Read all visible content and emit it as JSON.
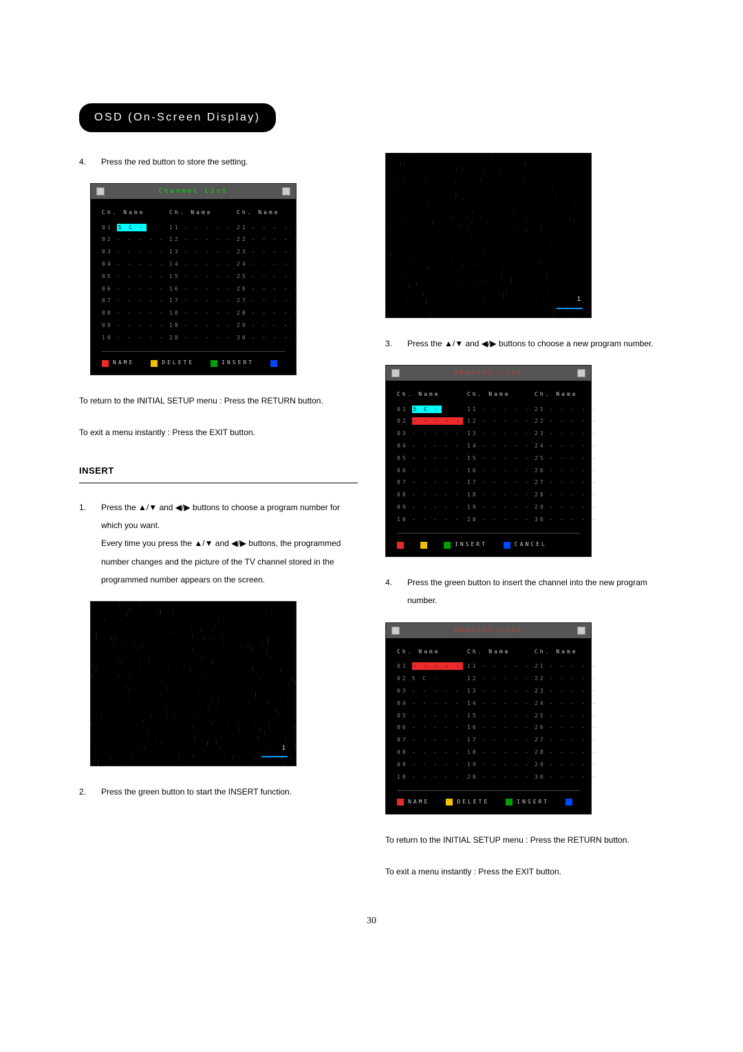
{
  "header": "OSD (On-Screen Display)",
  "left": {
    "step4": "Press the red button to store the setting.",
    "return_text": "To return to the INITIAL SETUP menu : Press the RETURN button.",
    "exit_text": "To exit a menu instantly : Press the EXIT button.",
    "insert_head": "INSERT",
    "ins1": "Press the ▲/▼ and ◀/▶ buttons to choose a program number for which you want.",
    "ins1b": "Every time you press the ▲/▼ and ◀/▶ buttons, the programmed number changes and the picture of the TV channel stored in the programmed number appears on the screen.",
    "ins2": "Press the green button to start the INSERT function."
  },
  "right": {
    "step3": "Press the ▲/▼ and ◀/▶ buttons to choose a new program number.",
    "step4": "Press the green button to insert the channel into the new program number.",
    "return_text": "To return to the INITIAL SETUP menu : Press the RETURN button.",
    "exit_text": "To exit a menu instantly : Press the EXIT button."
  },
  "osd": {
    "title": "Channel List",
    "col_head": "Ch. Name",
    "dash": "- - - - -",
    "ch_name": "5 C -",
    "legend_name": "NAME",
    "legend_delete": "DELETE",
    "legend_insert": "INSERT",
    "legend_cancel": "CANCEL",
    "rows": [
      [
        "01",
        "11",
        "21"
      ],
      [
        "02",
        "12",
        "22"
      ],
      [
        "03",
        "13",
        "23"
      ],
      [
        "04",
        "14",
        "24"
      ],
      [
        "05",
        "15",
        "25"
      ],
      [
        "06",
        "16",
        "26"
      ],
      [
        "07",
        "17",
        "27"
      ],
      [
        "08",
        "18",
        "28"
      ],
      [
        "09",
        "19",
        "29"
      ],
      [
        "10",
        "20",
        "30"
      ]
    ],
    "tvnum": "1",
    "colors": {
      "sel_cyan": "#00ffff",
      "sel_red": "#eb2b2b"
    }
  },
  "pagenum": "30"
}
